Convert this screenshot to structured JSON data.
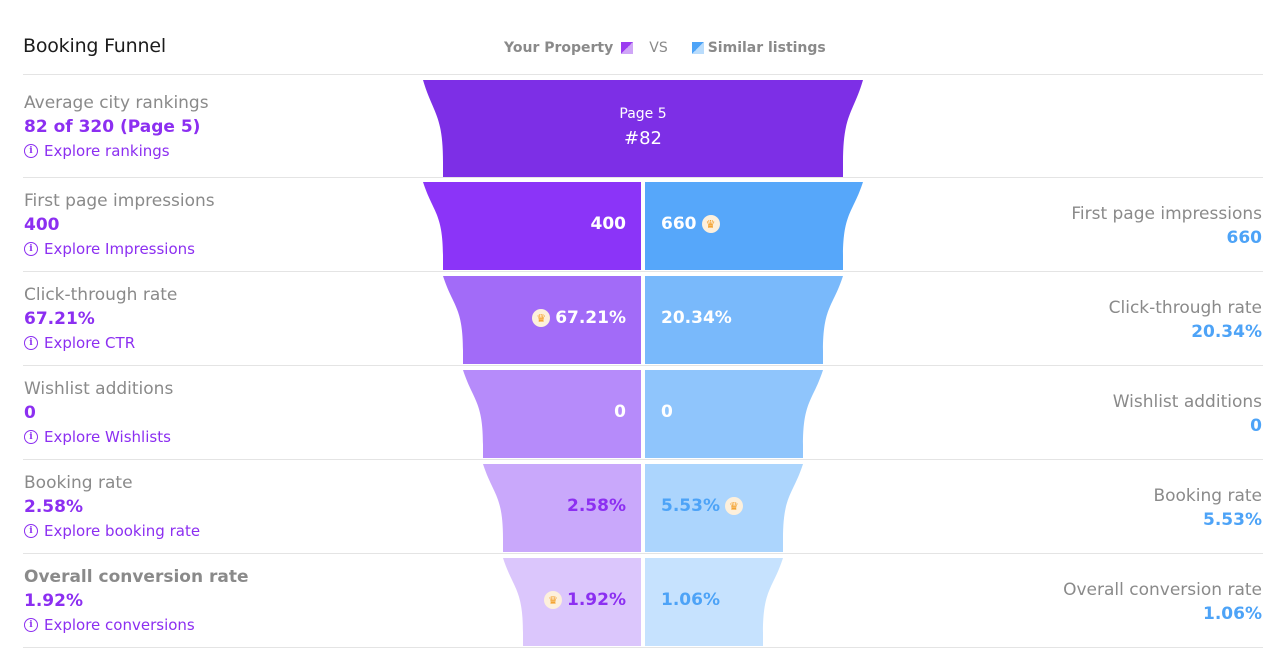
{
  "header": {
    "title": "Booking Funnel",
    "legend_property": "Your Property",
    "legend_vs": "VS",
    "legend_similar": "Similar listings"
  },
  "colors": {
    "property_text": "#8c2ff1",
    "similar_text": "#4da3f7",
    "label_gray": "#8a8a8a"
  },
  "top": {
    "label": "Average city rankings",
    "value": "82 of 320 (Page 5)",
    "link": "Explore rankings",
    "funnel_page": "Page 5",
    "funnel_rank": "#82"
  },
  "rows": [
    {
      "label": "First page impressions",
      "property_value": "400",
      "similar_value": "660",
      "link": "Explore Impressions",
      "crown": "similar"
    },
    {
      "label": "Click-through rate",
      "property_value": "67.21%",
      "similar_value": "20.34%",
      "link": "Explore CTR",
      "crown": "property"
    },
    {
      "label": "Wishlist additions",
      "property_value": "0",
      "similar_value": "0",
      "link": "Explore Wishlists",
      "crown": "none"
    },
    {
      "label": "Booking rate",
      "property_value": "2.58%",
      "similar_value": "5.53%",
      "link": "Explore booking rate",
      "crown": "similar"
    },
    {
      "label": "Overall conversion rate",
      "property_value": "1.92%",
      "similar_value": "1.06%",
      "link": "Explore conversions",
      "crown": "property"
    }
  ]
}
